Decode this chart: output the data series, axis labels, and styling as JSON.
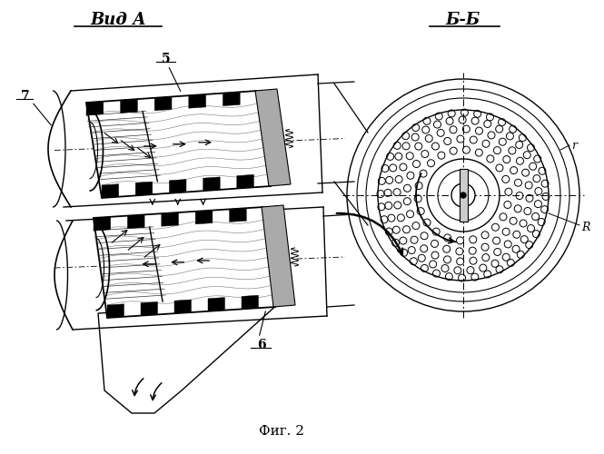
{
  "title_left": "Вид А",
  "title_right": "Б-Б",
  "caption": "Фиг. 2",
  "bg_color": "#ffffff",
  "line_color": "#000000",
  "label_5": "5",
  "label_6": "6",
  "label_7": "7",
  "label_R": "R",
  "label_r": "r",
  "fig_width": 6.65,
  "fig_height": 5.0,
  "dpi": 100
}
